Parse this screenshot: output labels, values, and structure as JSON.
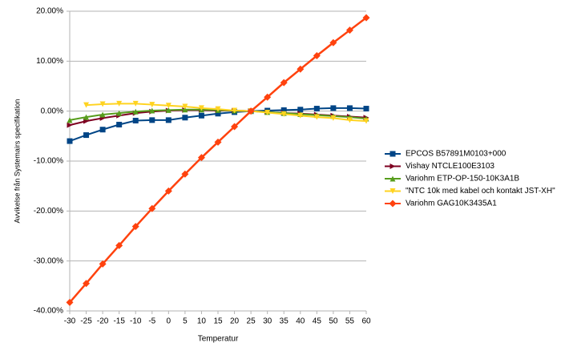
{
  "chart_data": {
    "type": "line",
    "x_label": "Temperatur",
    "y_label": "Avvikelse från Systemairs specifikation",
    "x": [
      -30,
      -25,
      -20,
      -15,
      -10,
      -5,
      0,
      5,
      10,
      15,
      20,
      25,
      30,
      35,
      40,
      45,
      50,
      55,
      60
    ],
    "xlim": [
      -30,
      60
    ],
    "xticks": [
      -30,
      -25,
      -20,
      -15,
      -10,
      -5,
      0,
      5,
      10,
      15,
      20,
      25,
      30,
      35,
      40,
      45,
      50,
      55,
      60
    ],
    "ylim": [
      -40,
      20
    ],
    "yticks": [
      {
        "value": -40,
        "label": "-40.00%"
      },
      {
        "value": -30,
        "label": "-30.00%"
      },
      {
        "value": -20,
        "label": "-20.00%"
      },
      {
        "value": -10,
        "label": "-10.00%"
      },
      {
        "value": 0,
        "label": "0.00%"
      },
      {
        "value": 10,
        "label": "10.00%"
      },
      {
        "value": 20,
        "label": "20.00%"
      }
    ],
    "grid": true,
    "legend": "right",
    "series": [
      {
        "name": "EPCOS B57891M0103+000",
        "color": "#004586",
        "marker": "square",
        "values": [
          -6.0,
          -4.8,
          -3.7,
          -2.7,
          -1.9,
          -1.8,
          -1.8,
          -1.3,
          -0.9,
          -0.5,
          -0.2,
          0,
          0.1,
          0.2,
          0.3,
          0.5,
          0.6,
          0.6,
          0.5
        ]
      },
      {
        "name": "Vishay NTCLE100E3103",
        "color": "#7e0021",
        "marker": "arrow",
        "values": [
          -2.8,
          -2.0,
          -1.4,
          -0.9,
          -0.4,
          -0.1,
          0.1,
          0.2,
          0.2,
          0.1,
          0.1,
          0,
          -0.2,
          -0.4,
          -0.5,
          -0.7,
          -0.9,
          -1.1,
          -1.3
        ]
      },
      {
        "name": "Variohm ETP-OP-150-10K3A1B",
        "color": "#579d1c",
        "marker": "triangle-up",
        "values": [
          -1.8,
          -1.2,
          -0.7,
          -0.4,
          -0.1,
          0.1,
          0.2,
          0.3,
          0.3,
          0.2,
          0.1,
          0,
          -0.2,
          -0.4,
          -0.6,
          -0.8,
          -1.0,
          -1.2,
          -1.5
        ]
      },
      {
        "name": "\"NTC 10k med kabel och kontakt JST-XH\"",
        "color": "#ffd320",
        "marker": "triangle-down",
        "values": [
          null,
          1.2,
          1.4,
          1.5,
          1.5,
          1.3,
          1.1,
          0.9,
          0.6,
          0.4,
          0.1,
          0,
          -0.3,
          -0.6,
          -0.9,
          -1.2,
          -1.4,
          -1.8,
          -2.0
        ]
      },
      {
        "name": "Variohm GAG10K3435A1",
        "color": "#ff420e",
        "marker": "diamond",
        "values": [
          -38.3,
          -34.5,
          -30.6,
          -26.9,
          -23.1,
          -19.5,
          -16.0,
          -12.6,
          -9.3,
          -6.2,
          -3.1,
          0,
          2.8,
          5.7,
          8.4,
          11.1,
          13.7,
          16.2,
          18.7
        ]
      }
    ]
  }
}
